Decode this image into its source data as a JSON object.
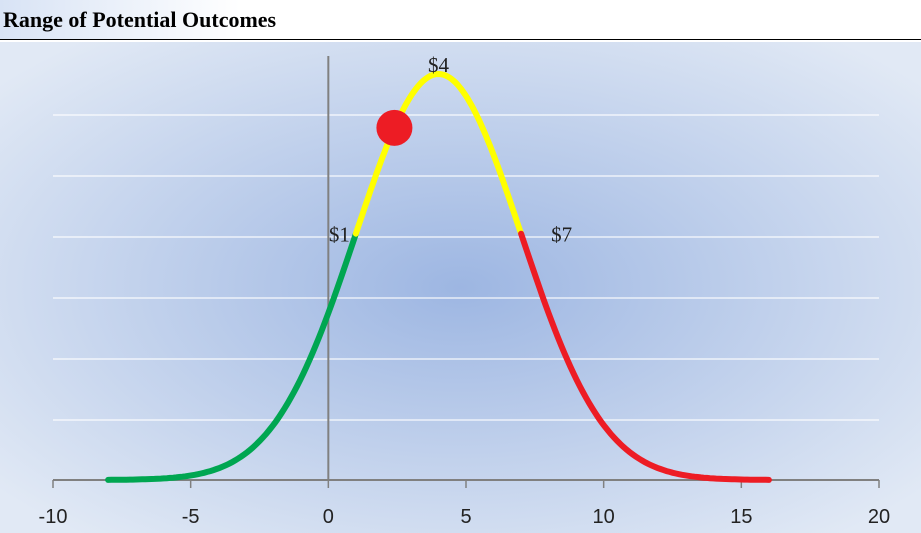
{
  "header": {
    "title": "Range of Potential Outcomes"
  },
  "chart_data": {
    "type": "line",
    "title": "Range of Potential Outcomes",
    "xlabel": "",
    "ylabel": "",
    "xlim": [
      -10,
      20
    ],
    "x_ticks": [
      "-10",
      "-5",
      "0",
      "5",
      "10",
      "15",
      "20"
    ],
    "grid": true,
    "distribution": {
      "shape": "normal",
      "mean": 4,
      "sd": 3,
      "x_range": [
        -8,
        16
      ]
    },
    "segments": [
      {
        "from": -8,
        "to": 1,
        "color": "#00a651"
      },
      {
        "from": 1,
        "to": 7,
        "color": "#ffff00"
      },
      {
        "from": 7,
        "to": 16,
        "color": "#ed1c24"
      }
    ],
    "annotations": [
      {
        "text": "$1",
        "x": 1
      },
      {
        "text": "$4",
        "x": 4
      },
      {
        "text": "$7",
        "x": 7
      }
    ],
    "marker": {
      "x": 2.4,
      "color": "#ed1c24"
    }
  }
}
